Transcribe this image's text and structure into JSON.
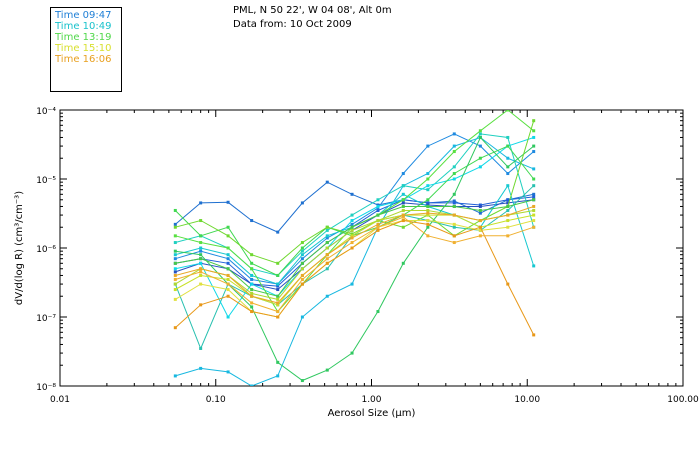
{
  "header": {
    "location": "PML, N 50 22', W 04 08', Alt 0m",
    "date": "Data from: 10 Oct 2009"
  },
  "legend": {
    "entries": [
      {
        "label": "Time 09:47",
        "color": "#1f7fd6"
      },
      {
        "label": "Time 10:49",
        "color": "#18c2cc"
      },
      {
        "label": "Time 13:19",
        "color": "#50d84a"
      },
      {
        "label": "Time 15:10",
        "color": "#d8e030"
      },
      {
        "label": "Time 16:06",
        "color": "#e8a020"
      }
    ]
  },
  "chart_data": {
    "type": "line",
    "scale": "log-log",
    "xlabel": "Aerosol Size (μm)",
    "ylabel": "dV/d(log R) (cm³/cm⁻³)",
    "xlim": [
      0.01,
      100
    ],
    "ylim": [
      1e-08,
      0.0001
    ],
    "x_tick_labels": [
      "0.01",
      "0.10",
      "1.00",
      "10.00",
      "100.00"
    ],
    "y_tick_labels": [
      "10⁻⁸",
      "10⁻⁷",
      "10⁻⁶",
      "10⁻⁵",
      "10⁻⁴"
    ],
    "x": [
      0.055,
      0.08,
      0.12,
      0.17,
      0.25,
      0.36,
      0.52,
      0.75,
      1.1,
      1.6,
      2.3,
      3.4,
      5.0,
      7.5,
      11.0
    ],
    "series": [
      {
        "name": "09:47 a",
        "color": "#1f70d0",
        "values": [
          2.2e-06,
          4.5e-06,
          4.6e-06,
          2.5e-06,
          1.7e-06,
          4.5e-06,
          9e-06,
          6e-06,
          4.2e-06,
          5e-06,
          4.5e-06,
          4.8e-06,
          3.2e-06,
          5e-06,
          6e-06
        ]
      },
      {
        "name": "09:47 b",
        "color": "#2060d8",
        "values": [
          6e-07,
          7e-07,
          6e-07,
          3e-07,
          2.8e-07,
          6e-07,
          1.2e-06,
          2e-06,
          3.5e-06,
          5e-06,
          4.5e-06,
          4.5e-06,
          4.2e-06,
          5e-06,
          5.5e-06
        ]
      },
      {
        "name": "09:47 c",
        "color": "#2850c0",
        "values": [
          4.5e-07,
          6e-07,
          5e-07,
          3e-07,
          2.5e-07,
          5e-07,
          1e-06,
          1.8e-06,
          3e-06,
          4.5e-06,
          4.2e-06,
          4e-06,
          4e-06,
          4.5e-06,
          5e-06
        ]
      },
      {
        "name": "09:47 d",
        "color": "#1e8ae0",
        "values": [
          7e-07,
          9e-07,
          7e-07,
          3.5e-07,
          3e-07,
          7e-07,
          1.4e-06,
          2.2e-06,
          3.8e-06,
          1.2e-05,
          3e-05,
          4.5e-05,
          3e-05,
          1.2e-05,
          2.5e-05
        ]
      },
      {
        "name": "10:49 a",
        "color": "#18b8e0",
        "values": [
          1.4e-08,
          1.8e-08,
          1.6e-08,
          1e-08,
          1.4e-08,
          1e-07,
          2e-07,
          3e-07,
          2e-06,
          8e-06,
          1.2e-05,
          3e-05,
          4e-05,
          2e-05,
          1.4e-05
        ]
      },
      {
        "name": "10:49 b",
        "color": "#16c8d0",
        "values": [
          8e-07,
          1e-06,
          8e-07,
          4e-07,
          3e-07,
          8e-07,
          1.5e-06,
          2e-06,
          3e-06,
          6e-06,
          4e-06,
          3e-06,
          2e-06,
          8e-06,
          5.5e-07
        ]
      },
      {
        "name": "10:49 c",
        "color": "#20d0c0",
        "values": [
          1.2e-06,
          1.5e-06,
          1e-06,
          5e-07,
          4e-07,
          9e-07,
          1.8e-06,
          3e-06,
          5e-06,
          8e-06,
          7e-06,
          1.5e-05,
          4.5e-05,
          4e-05,
          2e-06
        ]
      },
      {
        "name": "10:49 d",
        "color": "#28c0b0",
        "values": [
          3e-07,
          3.5e-08,
          3e-07,
          2e-07,
          1.5e-07,
          3e-07,
          5e-07,
          1.5e-06,
          2.5e-06,
          3e-06,
          2.5e-06,
          2e-06,
          1.8e-06,
          3.5e-06,
          8e-06
        ]
      },
      {
        "name": "10:49 e",
        "color": "#10d8e8",
        "values": [
          5e-07,
          6e-07,
          1e-07,
          3e-07,
          2e-07,
          5e-07,
          1e-06,
          2.5e-06,
          4e-06,
          5e-06,
          8e-06,
          1e-05,
          1.5e-05,
          3e-05,
          4e-05
        ]
      },
      {
        "name": "13:19 a",
        "color": "#40d850",
        "values": [
          3.5e-06,
          1.5e-06,
          2e-06,
          6e-07,
          4e-07,
          1e-06,
          2e-06,
          1.5e-06,
          2e-06,
          3e-06,
          5e-06,
          1.2e-05,
          2e-05,
          3e-05,
          1e-05
        ]
      },
      {
        "name": "13:19 b",
        "color": "#58e040",
        "values": [
          1.5e-06,
          1.2e-06,
          1e-06,
          5e-07,
          1.2e-07,
          3e-07,
          8e-07,
          2e-06,
          3e-06,
          5e-06,
          1e-05,
          2.5e-05,
          5e-05,
          0.0001,
          5e-05
        ]
      },
      {
        "name": "13:19 c",
        "color": "#30c860",
        "values": [
          9e-07,
          8e-07,
          3e-07,
          1.4e-07,
          2.2e-08,
          1.2e-08,
          1.7e-08,
          3e-08,
          1.2e-07,
          6e-07,
          2e-06,
          6e-06,
          4e-05,
          1.5e-05,
          3e-05
        ]
      },
      {
        "name": "13:19 d",
        "color": "#70d830",
        "values": [
          2e-06,
          2.5e-06,
          1.5e-06,
          8e-07,
          6e-07,
          1.2e-06,
          2e-06,
          1.6e-06,
          2.5e-06,
          2e-06,
          3e-06,
          1.5e-06,
          2.5e-06,
          4e-06,
          7e-05
        ]
      },
      {
        "name": "13:19 e",
        "color": "#48c848",
        "values": [
          6e-07,
          7e-07,
          5e-07,
          2.5e-07,
          2e-07,
          6e-07,
          1.2e-06,
          2e-06,
          3e-06,
          4e-06,
          4e-06,
          4e-06,
          3.5e-06,
          4e-06,
          5e-06
        ]
      },
      {
        "name": "15:10 a",
        "color": "#c8e028",
        "values": [
          2.5e-07,
          4e-07,
          3.5e-07,
          2e-07,
          1.5e-07,
          4e-07,
          8e-07,
          1.5e-06,
          2.5e-06,
          3e-06,
          3e-06,
          3e-06,
          2e-06,
          2.5e-06,
          3e-06
        ]
      },
      {
        "name": "15:10 b",
        "color": "#e0e040",
        "values": [
          1.8e-07,
          3e-07,
          2.5e-07,
          1.2e-07,
          1e-07,
          3e-07,
          6e-07,
          1e-06,
          2e-06,
          2.5e-06,
          2.5e-06,
          2.2e-06,
          1.8e-06,
          2e-06,
          2.5e-06
        ]
      },
      {
        "name": "15:10 c",
        "color": "#b0d830",
        "values": [
          3e-07,
          5e-07,
          4e-07,
          2.2e-07,
          1.8e-07,
          5e-07,
          1e-06,
          1.8e-06,
          2.5e-06,
          3.5e-06,
          3.5e-06,
          3e-06,
          2.5e-06,
          3e-06,
          3.5e-06
        ]
      },
      {
        "name": "16:06 a",
        "color": "#e89818",
        "values": [
          7e-08,
          1.5e-07,
          2e-07,
          1.2e-07,
          1e-07,
          3e-07,
          6e-07,
          1e-06,
          1.8e-06,
          2.5e-06,
          2.2e-06,
          1.5e-06,
          2e-06,
          3e-07,
          5.5e-08
        ]
      },
      {
        "name": "16:06 b",
        "color": "#f0b030",
        "values": [
          3.5e-07,
          4.5e-07,
          3e-07,
          1.6e-07,
          1.2e-07,
          3.5e-07,
          7e-07,
          1.2e-06,
          2e-06,
          2.8e-06,
          1.5e-06,
          1.2e-06,
          1.5e-06,
          1.5e-06,
          2e-06
        ]
      },
      {
        "name": "16:06 c",
        "color": "#e8a828",
        "values": [
          4e-07,
          5e-07,
          4e-07,
          2e-07,
          1.6e-07,
          4e-07,
          8e-07,
          1.4e-06,
          2.2e-06,
          3e-06,
          3.2e-06,
          3e-06,
          2.5e-06,
          3e-06,
          4e-06
        ]
      }
    ]
  }
}
